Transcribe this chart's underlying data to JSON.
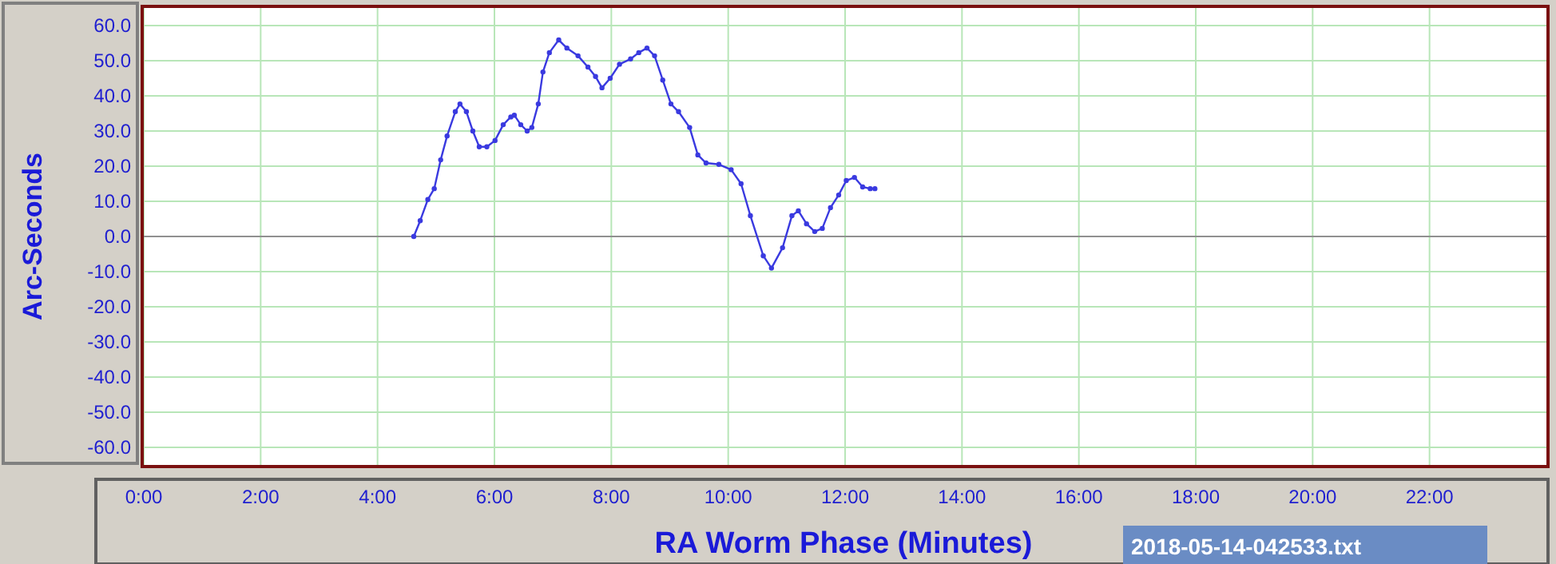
{
  "chart_data": {
    "type": "line",
    "xlabel": "RA Worm Phase (Minutes)",
    "ylabel": "Arc-Seconds",
    "annotations": [
      "2018-05-14-042533.txt"
    ],
    "grid": true,
    "marker": "circle",
    "line_style": "solid",
    "xlim": [
      0,
      24
    ],
    "ylim": [
      -65,
      65
    ],
    "xticks": [
      {
        "value": 0,
        "label": "0:00"
      },
      {
        "value": 2,
        "label": "2:00"
      },
      {
        "value": 4,
        "label": "4:00"
      },
      {
        "value": 6,
        "label": "6:00"
      },
      {
        "value": 8,
        "label": "8:00"
      },
      {
        "value": 10,
        "label": "10:00"
      },
      {
        "value": 12,
        "label": "12:00"
      },
      {
        "value": 14,
        "label": "14:00"
      },
      {
        "value": 16,
        "label": "16:00"
      },
      {
        "value": 18,
        "label": "18:00"
      },
      {
        "value": 20,
        "label": "20:00"
      },
      {
        "value": 22,
        "label": "22:00"
      }
    ],
    "yticks": [
      {
        "value": 60,
        "label": "60.0"
      },
      {
        "value": 50,
        "label": "50.0"
      },
      {
        "value": 40,
        "label": "40.0"
      },
      {
        "value": 30,
        "label": "30.0"
      },
      {
        "value": 20,
        "label": "20.0"
      },
      {
        "value": 10,
        "label": "10.0"
      },
      {
        "value": 0,
        "label": "0.0"
      },
      {
        "value": -10,
        "label": "-10.0"
      },
      {
        "value": -20,
        "label": "-20.0"
      },
      {
        "value": -30,
        "label": "-30.0"
      },
      {
        "value": -40,
        "label": "-40.0"
      },
      {
        "value": -50,
        "label": "-50.0"
      },
      {
        "value": -60,
        "label": "-60.0"
      }
    ],
    "ref_lines": [
      {
        "axis": "y",
        "value": 0,
        "color": "#909090"
      }
    ],
    "series": [
      {
        "color": "#3a3ae0",
        "x": [
          4.62,
          4.73,
          4.86,
          4.97,
          5.08,
          5.19,
          5.33,
          5.41,
          5.52,
          5.63,
          5.74,
          5.87,
          6.01,
          6.15,
          6.28,
          6.34,
          6.45,
          6.56,
          6.64,
          6.75,
          6.83,
          6.94,
          7.1,
          7.24,
          7.43,
          7.6,
          7.73,
          7.84,
          7.98,
          8.14,
          8.33,
          8.47,
          8.61,
          8.74,
          8.88,
          9.02,
          9.15,
          9.34,
          9.48,
          9.62,
          9.84,
          10.05,
          10.22,
          10.38,
          10.6,
          10.74,
          10.93,
          11.09,
          11.2,
          11.34,
          11.48,
          11.61,
          11.75,
          11.89,
          12.02,
          12.16,
          12.3,
          12.43,
          12.51
        ],
        "values": [
          0,
          4.5,
          10.5,
          13.6,
          21.8,
          28.6,
          35.5,
          37.7,
          35.5,
          30,
          25.5,
          25.5,
          27.3,
          31.8,
          34,
          34.5,
          31.8,
          30,
          31,
          37.7,
          46.8,
          52.3,
          55.9,
          53.6,
          51.4,
          48.2,
          45.5,
          42.3,
          45,
          49,
          50.5,
          52.3,
          53.6,
          51.4,
          44.5,
          37.7,
          35.5,
          31,
          23.2,
          20.9,
          20.5,
          19,
          15,
          5.9,
          -5.5,
          -9,
          -3.2,
          5.9,
          7.3,
          3.6,
          1.4,
          2.3,
          8.2,
          11.8,
          15.9,
          16.8,
          14.1,
          13.6,
          13.6
        ]
      }
    ]
  }
}
